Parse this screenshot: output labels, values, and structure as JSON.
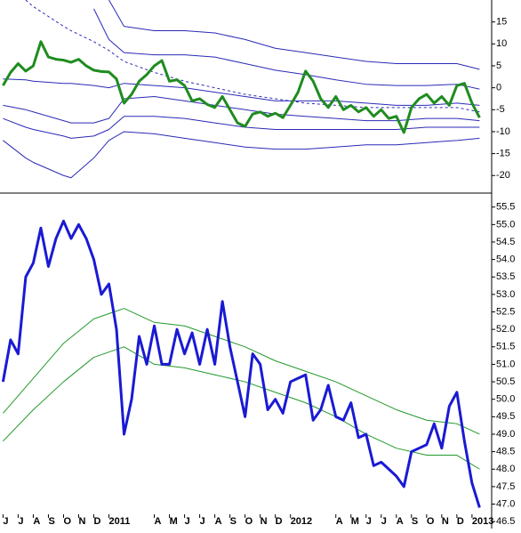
{
  "chart_data": [
    {
      "type": "line",
      "xlim": [
        -0.2,
        32.3
      ],
      "ylim": [
        -24,
        20
      ],
      "yticks": [
        -20,
        -15,
        -10,
        -5,
        0,
        5,
        10,
        15
      ],
      "series": [
        {
          "color": "#2a2ab8",
          "linewidth": 1,
          "line_style": "solid",
          "x": [
            0,
            1.5,
            2,
            4,
            4.5,
            6,
            7,
            8,
            10,
            12,
            14,
            16,
            18,
            20,
            22,
            24,
            26,
            28,
            30,
            31.5
          ],
          "values": [
            null,
            null,
            null,
            null,
            null,
            null,
            20,
            14,
            13,
            13,
            12.5,
            11,
            9,
            8,
            7,
            6,
            5.5,
            5.5,
            5.5,
            4.2
          ]
        },
        {
          "color": "#2a2ab8",
          "linewidth": 1,
          "line_style": "solid",
          "x": [
            0,
            1.5,
            2,
            4,
            4.5,
            6,
            7,
            8,
            10,
            12,
            14,
            16,
            18,
            20,
            22,
            24,
            26,
            28,
            30,
            31.5
          ],
          "values": [
            null,
            null,
            null,
            null,
            null,
            18,
            11,
            8,
            7.5,
            7.5,
            7,
            5.5,
            4,
            3,
            1.8,
            0.8,
            0.5,
            0.5,
            0.8,
            -0.3
          ]
        },
        {
          "color": "#2a2ab8",
          "linewidth": 1,
          "line_style": "dashed",
          "x": [
            0,
            1.5,
            2,
            4,
            4.5,
            6,
            7,
            8,
            10,
            12,
            14,
            16,
            18,
            20,
            22,
            24,
            26,
            28,
            30,
            31.5
          ],
          "values": [
            null,
            20,
            18.5,
            14,
            13,
            10.5,
            8.5,
            6,
            3.5,
            1.5,
            0,
            -1.5,
            -2.5,
            -3.5,
            -4,
            -4.5,
            -4.5,
            -4.5,
            -4.5,
            -5.5
          ]
        },
        {
          "color": "#2a2ab8",
          "linewidth": 1,
          "line_style": "solid",
          "x": [
            0,
            1.5,
            2,
            4,
            4.5,
            6,
            7,
            8,
            10,
            12,
            14,
            16,
            18,
            20,
            22,
            24,
            26,
            28,
            30,
            31.5
          ],
          "values": [
            2,
            1.8,
            1.5,
            1,
            1,
            0.5,
            0,
            1,
            0.5,
            0,
            -1,
            -2,
            -3,
            -3,
            -3,
            -3.5,
            -4,
            -4,
            -3.5,
            -4
          ]
        },
        {
          "color": "#2a2ab8",
          "linewidth": 1,
          "line_style": "solid",
          "x": [
            0,
            1.5,
            2,
            4,
            4.5,
            6,
            7,
            8,
            10,
            12,
            14,
            16,
            18,
            20,
            22,
            24,
            26,
            28,
            30,
            31.5
          ],
          "values": [
            -4,
            -5,
            -5.5,
            -7.5,
            -8,
            -8,
            -7,
            -2.5,
            -2,
            -3,
            -4,
            -5,
            -6,
            -6.5,
            -7,
            -7.5,
            -7.5,
            -7,
            -7,
            -7.5
          ]
        },
        {
          "color": "#2a2ab8",
          "linewidth": 1,
          "line_style": "solid",
          "x": [
            0,
            1.5,
            2,
            4,
            4.5,
            6,
            7,
            8,
            10,
            12,
            14,
            16,
            18,
            20,
            22,
            24,
            26,
            28,
            30,
            31.5
          ],
          "values": [
            -7,
            -9,
            -9.5,
            -11,
            -11.5,
            -11,
            -9.5,
            -6.5,
            -6.5,
            -7,
            -8,
            -9,
            -9.5,
            -9.5,
            -9.5,
            -9.5,
            -9.5,
            -9,
            -9,
            -9
          ]
        },
        {
          "color": "#2a2ab8",
          "linewidth": 1,
          "line_style": "solid",
          "x": [
            0,
            1.5,
            2,
            4,
            4.5,
            6,
            7,
            8,
            10,
            12,
            14,
            16,
            18,
            20,
            22,
            24,
            26,
            28,
            30,
            31.5
          ],
          "values": [
            -12,
            -16,
            -17,
            -20,
            -20.5,
            -16,
            -12,
            -10,
            -10.5,
            -11.5,
            -12.5,
            -13.5,
            -14,
            -14,
            -13.5,
            -13,
            -13,
            -12.5,
            -12,
            -11.5
          ]
        },
        {
          "color": "#1f8c1f",
          "linewidth": 3,
          "line_style": "solid",
          "x": [
            0,
            0.5,
            1,
            1.5,
            2,
            2.5,
            3,
            3.5,
            4,
            4.5,
            5,
            5.5,
            6,
            6.5,
            7,
            7.5,
            8,
            8.5,
            9,
            9.5,
            10,
            10.5,
            11,
            11.5,
            12,
            12.5,
            13,
            13.5,
            14,
            14.5,
            15,
            15.5,
            16,
            16.5,
            17,
            17.5,
            18,
            18.5,
            19,
            19.5,
            20,
            20.5,
            21,
            21.5,
            22,
            22.5,
            23,
            23.5,
            24,
            24.5,
            25,
            25.5,
            26,
            26.5,
            27,
            27.5,
            28,
            28.5,
            29,
            29.5,
            30,
            30.5,
            31,
            31.5
          ],
          "values": [
            0.5,
            3.5,
            5.5,
            3.8,
            5,
            10.5,
            7,
            6.5,
            6.3,
            5.8,
            6.5,
            5,
            4,
            3.7,
            3.6,
            2,
            -3.5,
            -1.5,
            1.5,
            3,
            5,
            6.2,
            1.5,
            1.8,
            0.5,
            -3,
            -2.5,
            -3.8,
            -4.5,
            -2,
            -5,
            -8,
            -8.8,
            -6,
            -5.5,
            -6.5,
            -5.8,
            -6.8,
            -4,
            -1,
            3.8,
            1.5,
            -2.5,
            -4.5,
            -2,
            -5,
            -4,
            -5.5,
            -4.5,
            -6.5,
            -5,
            -7,
            -6.5,
            -10.2,
            -4.5,
            -2.5,
            -1.5,
            -3.5,
            -2,
            -4,
            0.5,
            1,
            -3.5,
            -6.8
          ]
        }
      ]
    },
    {
      "type": "line",
      "xlim": [
        -0.2,
        32.3
      ],
      "ylim": [
        46.3,
        55.9
      ],
      "yticks": [
        {
          "value": 46.5,
          "label": "46.5"
        },
        {
          "value": 47,
          "label": "47.0"
        },
        {
          "value": 47.5,
          "label": "47.5"
        },
        {
          "value": 48,
          "label": "48.0"
        },
        {
          "value": 48.5,
          "label": "48.5"
        },
        {
          "value": 49,
          "label": "49.0"
        },
        {
          "value": 49.5,
          "label": "49.5"
        },
        {
          "value": 50,
          "label": "50.0"
        },
        {
          "value": 50.5,
          "label": "50.5"
        },
        {
          "value": 51,
          "label": "51.0"
        },
        {
          "value": 51.5,
          "label": "51.5"
        },
        {
          "value": 52,
          "label": "52.0"
        },
        {
          "value": 52.5,
          "label": "52.5"
        },
        {
          "value": 53,
          "label": "53.0"
        },
        {
          "value": 53.5,
          "label": "53.5"
        },
        {
          "value": 54,
          "label": "54.0"
        },
        {
          "value": 54.5,
          "label": "54.5"
        },
        {
          "value": 55,
          "label": "55.0"
        },
        {
          "value": 55.5,
          "label": "55.5"
        }
      ],
      "xticks": [
        {
          "value": 0,
          "label": "J"
        },
        {
          "value": 1,
          "label": "J"
        },
        {
          "value": 2,
          "label": "A"
        },
        {
          "value": 3,
          "label": "S"
        },
        {
          "value": 4,
          "label": "O"
        },
        {
          "value": 5,
          "label": "N"
        },
        {
          "value": 6,
          "label": "D"
        },
        {
          "value": 7,
          "label": "2011"
        },
        {
          "value": 10,
          "label": "A"
        },
        {
          "value": 11,
          "label": "M"
        },
        {
          "value": 12,
          "label": "J"
        },
        {
          "value": 13,
          "label": "J"
        },
        {
          "value": 14,
          "label": "A"
        },
        {
          "value": 15,
          "label": "S"
        },
        {
          "value": 16,
          "label": "O"
        },
        {
          "value": 17,
          "label": "N"
        },
        {
          "value": 18,
          "label": "D"
        },
        {
          "value": 19,
          "label": "2012"
        },
        {
          "value": 22,
          "label": "A"
        },
        {
          "value": 23,
          "label": "M"
        },
        {
          "value": 24,
          "label": "J"
        },
        {
          "value": 25,
          "label": "J"
        },
        {
          "value": 26,
          "label": "A"
        },
        {
          "value": 27,
          "label": "S"
        },
        {
          "value": 28,
          "label": "O"
        },
        {
          "value": 29,
          "label": "N"
        },
        {
          "value": 30,
          "label": "D"
        },
        {
          "value": 31,
          "label": "2013"
        }
      ],
      "series": [
        {
          "color": "#22992a",
          "linewidth": 1,
          "line_style": "solid",
          "x": [
            0,
            2,
            4,
            6,
            8,
            10,
            12,
            14,
            16,
            18,
            20,
            22,
            24,
            26,
            28,
            30,
            31.5
          ],
          "values": [
            49.6,
            50.6,
            51.6,
            52.3,
            52.6,
            52.2,
            52.1,
            51.8,
            51.5,
            51.1,
            50.8,
            50.5,
            50.1,
            49.7,
            49.4,
            49.3,
            49.0
          ]
        },
        {
          "color": "#22992a",
          "linewidth": 1,
          "line_style": "solid",
          "x": [
            0,
            2,
            4,
            6,
            8,
            10,
            12,
            14,
            16,
            18,
            20,
            22,
            24,
            26,
            28,
            30,
            31.5
          ],
          "values": [
            48.8,
            49.7,
            50.5,
            51.2,
            51.5,
            51,
            50.9,
            50.7,
            50.5,
            50.2,
            49.9,
            49.5,
            49,
            48.6,
            48.4,
            48.4,
            48
          ]
        },
        {
          "color": "#1a1ad4",
          "linewidth": 3,
          "line_style": "solid",
          "x": [
            0,
            0.5,
            1,
            1.5,
            2,
            2.5,
            3,
            3.5,
            4,
            4.5,
            5,
            5.5,
            6,
            6.5,
            7,
            7.5,
            8,
            8.5,
            9,
            9.5,
            10,
            10.5,
            11,
            11.5,
            12,
            12.5,
            13,
            13.5,
            14,
            14.5,
            15,
            15.5,
            16,
            16.5,
            17,
            17.5,
            18,
            18.5,
            19,
            19.5,
            20,
            20.5,
            21,
            21.5,
            22,
            22.5,
            23,
            23.5,
            24,
            24.5,
            25,
            25.5,
            26,
            26.5,
            27,
            27.5,
            28,
            28.5,
            29,
            29.5,
            30,
            30.5,
            31,
            31.5
          ],
          "values": [
            50.5,
            51.7,
            51.3,
            53.5,
            53.9,
            54.9,
            53.8,
            54.6,
            55.1,
            54.6,
            55,
            54.6,
            54,
            53,
            53.3,
            52,
            49,
            50,
            51.8,
            51,
            52.1,
            51,
            51,
            52,
            51.3,
            51.9,
            51,
            52,
            51,
            52.8,
            51.5,
            50.5,
            49.5,
            51.3,
            51,
            49.7,
            50,
            49.6,
            50.5,
            50.6,
            50.7,
            49.4,
            49.7,
            50.4,
            49.5,
            49.4,
            49.9,
            48.9,
            49,
            48.1,
            48.2,
            48,
            47.8,
            47.5,
            48.5,
            48.6,
            48.7,
            49.3,
            48.6,
            49.8,
            50.2,
            48.8,
            47.6,
            46.9
          ]
        }
      ]
    }
  ]
}
